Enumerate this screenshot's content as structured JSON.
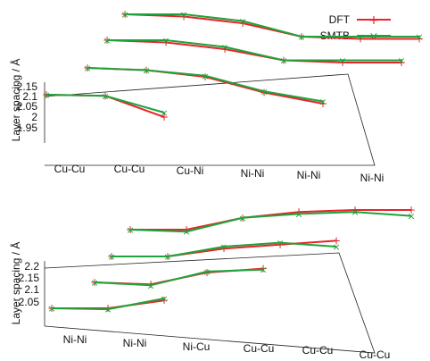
{
  "chart_data": [
    {
      "type": "line",
      "panel": "top",
      "ylabel": "Layer spacing / Å",
      "yticks": [
        "2.15",
        "2.1",
        "2.05",
        "2",
        "1.95"
      ],
      "ylim": [
        1.95,
        2.15
      ],
      "xticks": [
        "Cu-Cu",
        "Cu-Cu",
        "Cu-Ni",
        "Ni-Ni",
        "Ni-Ni",
        "Ni-Ni"
      ],
      "legend": {
        "position": "top-right",
        "entries": [
          "DFT",
          "SMTB"
        ]
      },
      "colors": {
        "DFT": "#e8232a",
        "SMTB": "#1fa33a"
      },
      "series": [
        {
          "name": "DFT",
          "rows": [
            [
              2.1,
              2.095,
              2.0
            ],
            [
              2.15,
              2.14,
              2.11,
              2.04,
              1.99
            ],
            [
              2.14,
              2.13,
              2.1,
              2.05,
              2.04,
              2.04
            ],
            [
              2.15,
              2.14,
              2.11,
              2.05,
              2.04,
              2.04
            ]
          ]
        },
        {
          "name": "SMTB",
          "rows": [
            [
              2.1,
              2.095,
              2.02
            ],
            [
              2.15,
              2.14,
              2.115,
              2.045,
              2.0
            ],
            [
              2.14,
              2.14,
              2.11,
              2.05,
              2.05,
              2.05
            ],
            [
              2.15,
              2.15,
              2.12,
              2.05,
              2.05,
              2.05
            ]
          ]
        }
      ]
    },
    {
      "type": "line",
      "panel": "bottom",
      "ylabel": "Layer spacing / Å",
      "yticks": [
        "2.2",
        "2.15",
        "2.1",
        "2.05"
      ],
      "ylim": [
        2.05,
        2.2
      ],
      "xticks": [
        "Ni-Ni",
        "Ni-Ni",
        "Ni-Cu",
        "Cu-Cu",
        "Cu-Cu",
        "Cu-Cu"
      ],
      "series": [
        {
          "name": "DFT",
          "rows": [
            [
              2.03,
              2.03,
              2.07
            ],
            [
              2.13,
              2.12,
              2.18,
              2.2
            ],
            [
              2.11,
              2.11,
              2.15,
              2.17,
              2.19
            ],
            [
              2.09,
              2.09,
              2.15,
              2.18,
              2.19,
              2.19
            ]
          ]
        },
        {
          "name": "SMTB",
          "rows": [
            [
              2.03,
              2.025,
              2.08
            ],
            [
              2.135,
              2.12,
              2.19,
              2.2
            ],
            [
              2.11,
              2.11,
              2.16,
              2.18,
              2.16
            ],
            [
              2.1,
              2.09,
              2.16,
              2.18,
              2.19,
              2.17
            ]
          ]
        }
      ]
    }
  ]
}
